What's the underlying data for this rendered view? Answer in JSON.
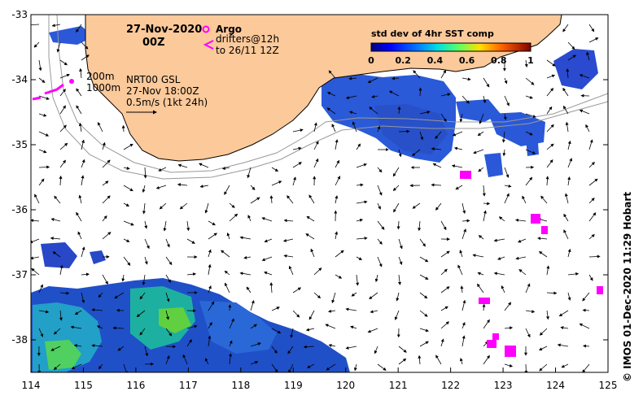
{
  "map": {
    "date": "27-Nov-2020",
    "hour": "00Z",
    "argo_label": "Argo",
    "drifters_line1": "drifters@12h",
    "drifters_line2": "to 26/11 12Z",
    "contour_200": "200m",
    "contour_1000": "1000m",
    "current_source": "NRT00 GSL",
    "current_time": "27-Nov 18:00Z",
    "vector_scale": "0.5m/s (1kt 24h)",
    "colorbar_title": "std dev of 4hr SST comp",
    "colorbar_ticks": [
      "0",
      "0.2",
      "0.4",
      "0.6",
      "0.8",
      "1"
    ],
    "credit": "© IMOS 01-Dec-2020 11:29 Hobart",
    "lon_labels": [
      "114",
      "115",
      "116",
      "117",
      "118",
      "119",
      "120",
      "121",
      "122",
      "123",
      "124",
      "125"
    ],
    "lat_labels": [
      "-33",
      "-34",
      "-35",
      "-36",
      "-37",
      "-38"
    ],
    "land_color": "#fbc99a",
    "argo_color": "#ff00ff"
  }
}
